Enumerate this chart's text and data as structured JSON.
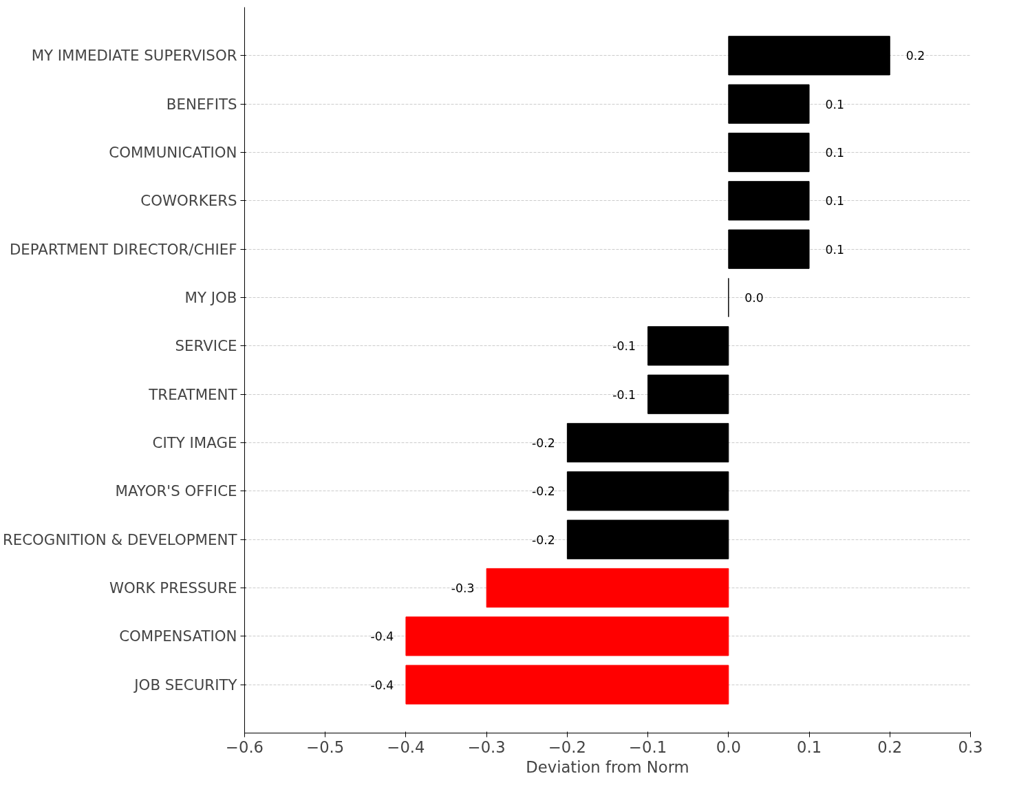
{
  "chart_data": {
    "type": "bar",
    "orientation": "horizontal",
    "xlabel": "Deviation from Norm",
    "categories": [
      "MY IMMEDIATE SUPERVISOR",
      "BENEFITS",
      "COMMUNICATION",
      "COWORKERS",
      "DEPARTMENT DIRECTOR/CHIEF",
      "MY JOB",
      "SERVICE",
      "TREATMENT",
      "CITY IMAGE",
      "MAYOR'S OFFICE",
      "RECOGNITION & DEVELOPMENT",
      "WORK PRESSURE",
      "COMPENSATION",
      "JOB SECURITY"
    ],
    "values": [
      0.2,
      0.1,
      0.1,
      0.1,
      0.1,
      0.0,
      -0.1,
      -0.1,
      -0.2,
      -0.2,
      -0.2,
      -0.3,
      -0.4,
      -0.4
    ],
    "colors": [
      "#000000",
      "#000000",
      "#000000",
      "#000000",
      "#000000",
      "#000000",
      "#000000",
      "#000000",
      "#000000",
      "#000000",
      "#000000",
      "#ff0000",
      "#ff0000",
      "#ff0000"
    ],
    "value_labels": [
      "0.2",
      "0.1",
      "0.1",
      "0.1",
      "0.1",
      "0.0",
      "-0.1",
      "-0.1",
      "-0.2",
      "-0.2",
      "-0.2",
      "-0.3",
      "-0.4",
      "-0.4"
    ],
    "xlim": [
      -0.6,
      0.3
    ],
    "xticks": [
      {
        "value": -0.6,
        "label": "−0.6"
      },
      {
        "value": -0.5,
        "label": "−0.5"
      },
      {
        "value": -0.4,
        "label": "−0.4"
      },
      {
        "value": -0.3,
        "label": "−0.3"
      },
      {
        "value": -0.2,
        "label": "−0.2"
      },
      {
        "value": -0.1,
        "label": "−0.1"
      },
      {
        "value": 0,
        "label": "0.0"
      },
      0.1,
      0.2,
      0.3
    ],
    "grid": "y"
  }
}
